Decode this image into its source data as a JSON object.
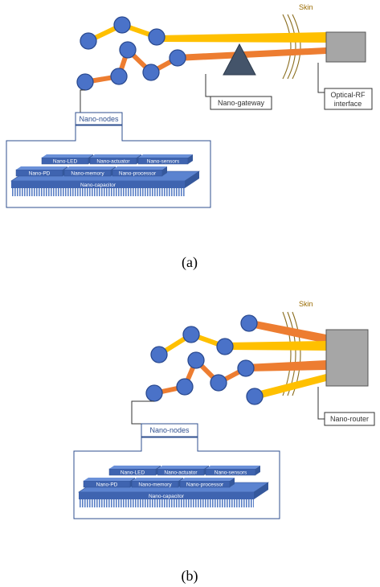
{
  "panel_a": {
    "caption": "(a)",
    "skin_label": "Skin",
    "nodes_label": "Nano-nodes",
    "gateway_label": "Nano-gateway",
    "interface_label_line1": "Optical-RF",
    "interface_label_line2": "interface",
    "chip": {
      "row1": [
        "Nano-LED",
        "Nano-actuator",
        "Nano-sensors"
      ],
      "row2": [
        "Nano-PD",
        "Nano-memory",
        "Nano-processor"
      ],
      "base": "Nano-capacitor"
    }
  },
  "panel_b": {
    "caption": "(b)",
    "skin_label": "Skin",
    "nodes_label": "Nano-nodes",
    "router_label": "Nano-router",
    "chip": {
      "row1": [
        "Nano-LED",
        "Nano-actuator",
        "Nano-sensors"
      ],
      "row2": [
        "Nano-PD",
        "Nano-memory",
        "Nano-processor"
      ],
      "base": "Nano-capacitor"
    }
  },
  "colors": {
    "node_fill": "#4a72c8",
    "node_stroke": "#2a4a90",
    "yellow_link": "#ffc000",
    "orange_link": "#ed7d31",
    "gateway": "#44546a",
    "device_box": "#a6a6a6",
    "chip_top": "#5b83d0",
    "chip_face": "#3f64b0"
  }
}
